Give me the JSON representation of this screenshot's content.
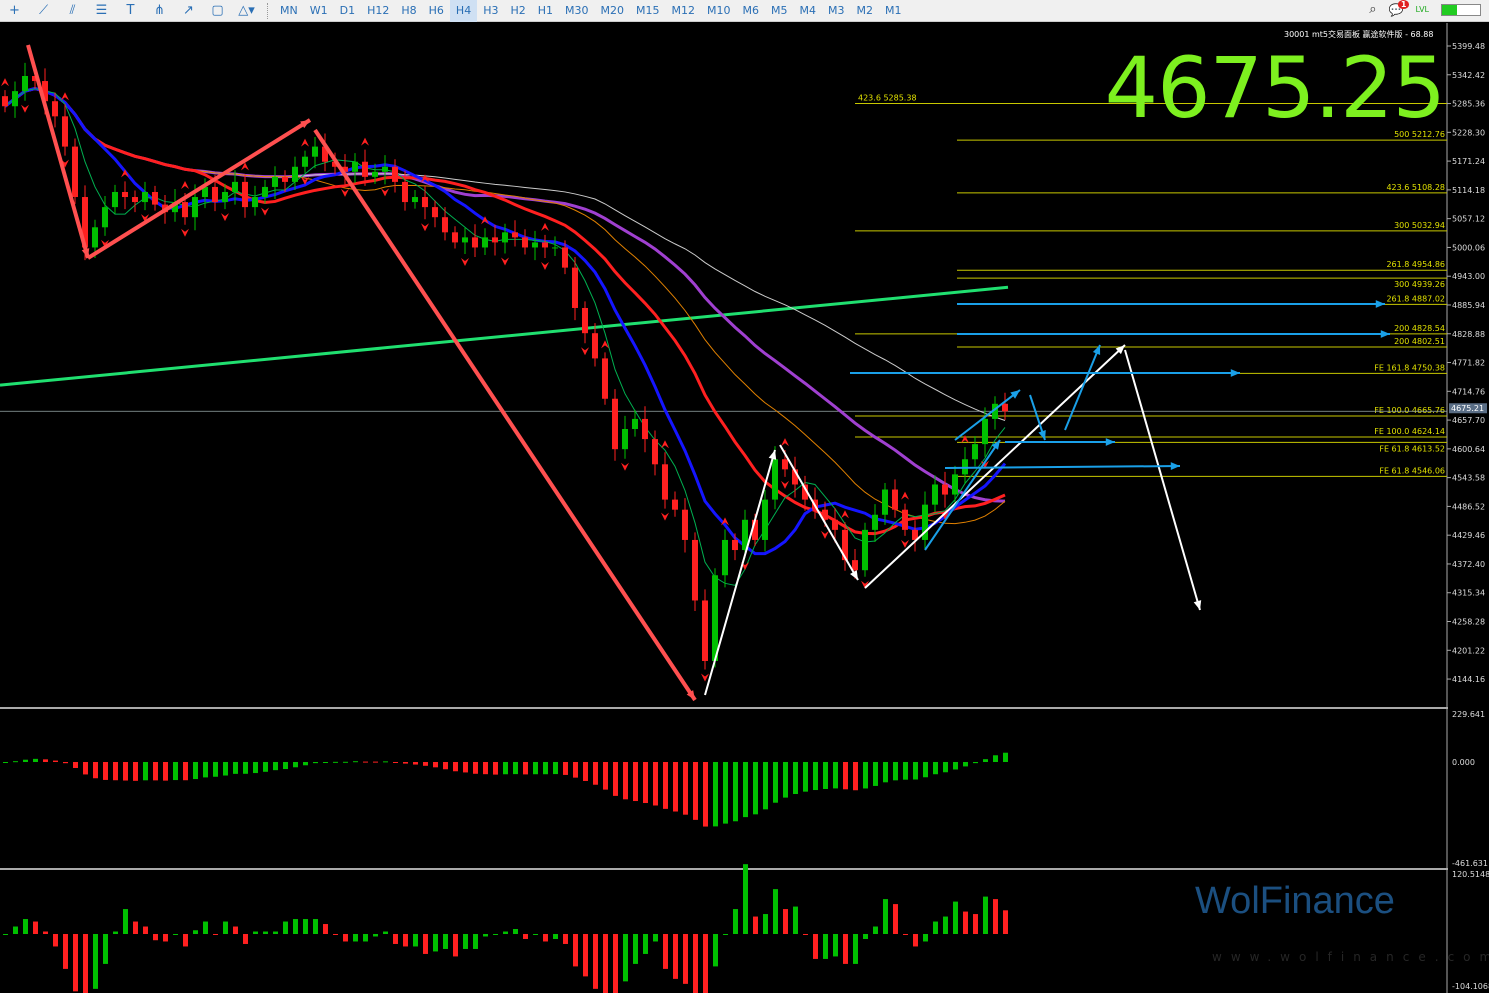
{
  "toolbar": {
    "tools": [
      "cursor-icon",
      "trendline-icon",
      "channel-icon",
      "fibonacci-icon",
      "text-icon",
      "pitchfork-icon",
      "arrow-icon",
      "rectangle-icon",
      "shapes-icon"
    ],
    "timeframes": [
      "MN",
      "W1",
      "D1",
      "H12",
      "H8",
      "H6",
      "H4",
      "H3",
      "H2",
      "H1",
      "M30",
      "M20",
      "M15",
      "M12",
      "M10",
      "M6",
      "M5",
      "M4",
      "M3",
      "M2",
      "M1"
    ],
    "active_timeframe": "H4",
    "notification_count": "1"
  },
  "header": {
    "symbol_info": "30001 mt5交易面板 赢途软件版 - 68.88",
    "big_price": "4675.25",
    "current_price_tag": "4675.21"
  },
  "watermark": {
    "brand": "WolFinance",
    "url": "www.wolfinance.com"
  },
  "colors": {
    "bull": "#00c000",
    "bear": "#ff2020",
    "ma_fast": "#1515ff",
    "ma_mid": "#ff2020",
    "ma_slow": "#a040d0",
    "ma_long": "#20e070",
    "fib": "#c8c800",
    "big_price": "#7df01f"
  },
  "chart_data": [
    {
      "type": "candlestick",
      "title": "",
      "ylim": [
        4115,
        5430
      ],
      "price_ticks": [
        "5399.48",
        "5342.42",
        "5285.36",
        "5228.30",
        "5171.24",
        "5114.18",
        "5057.12",
        "5000.06",
        "4943.00",
        "4885.94",
        "4828.88",
        "4771.82",
        "4714.76",
        "4657.70",
        "4600.64",
        "4543.58",
        "4486.52",
        "4429.46",
        "4372.40",
        "4315.34",
        "4258.28",
        "4201.22",
        "4144.16"
      ],
      "closes": [
        5280,
        5310,
        5340,
        5330,
        5290,
        5260,
        5200,
        5100,
        5000,
        5040,
        5080,
        5110,
        5100,
        5090,
        5110,
        5085,
        5070,
        5090,
        5060,
        5100,
        5120,
        5090,
        5110,
        5130,
        5080,
        5100,
        5120,
        5140,
        5130,
        5160,
        5180,
        5200,
        5170,
        5160,
        5150,
        5170,
        5140,
        5150,
        5160,
        5130,
        5090,
        5100,
        5080,
        5060,
        5030,
        5010,
        5020,
        5000,
        5020,
        5010,
        5030,
        5020,
        5000,
        5010,
        5000,
        5000,
        4960,
        4880,
        4830,
        4780,
        4700,
        4600,
        4640,
        4660,
        4620,
        4570,
        4500,
        4480,
        4420,
        4300,
        4180,
        4350,
        4420,
        4400,
        4460,
        4420,
        4500,
        4580,
        4560,
        4530,
        4500,
        4480,
        4460,
        4440,
        4380,
        4360,
        4440,
        4470,
        4520,
        4480,
        4440,
        4420,
        4490,
        4530,
        4510,
        4550,
        4580,
        4610,
        4660,
        4690,
        4675
      ],
      "long_ma": [
        4727,
        4921
      ],
      "levels": [
        {
          "label": "423.6",
          "value": "5285.38"
        },
        {
          "label": "500",
          "value": "5212.76"
        },
        {
          "label": "423.6",
          "value": "5108.28"
        },
        {
          "label": "300",
          "value": "5032.94"
        },
        {
          "label": "261.8",
          "value": "4954.86"
        },
        {
          "label": "300",
          "value": "4939.26"
        },
        {
          "label": "261.8",
          "value": "4887.02"
        },
        {
          "label": "200",
          "value": "4828.54"
        },
        {
          "label": "200",
          "value": "4802.51"
        },
        {
          "label": "FE 161.8",
          "value": "4750.38"
        },
        {
          "label": "FE 100.0",
          "value": "4665.76"
        },
        {
          "label": "FE 100.0",
          "value": "4624.14"
        },
        {
          "label": "FE 61.8",
          "value": "4613.52"
        },
        {
          "label": "FE 61.8",
          "value": "4546.06"
        }
      ]
    },
    {
      "type": "bar",
      "title": "",
      "ylim": [
        -461.631,
        229.641
      ],
      "ticks": [
        "229.641",
        "0.000",
        "-461.631"
      ]
    },
    {
      "type": "bar",
      "title": "",
      "ylim": [
        -104.1068,
        120.5148
      ],
      "ticks": [
        "120.5148",
        "-104.1068"
      ]
    }
  ]
}
